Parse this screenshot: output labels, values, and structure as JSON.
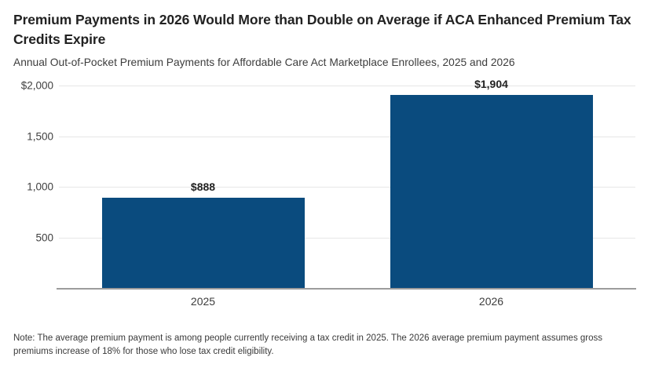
{
  "header": {
    "title": "Premium Payments in 2026 Would More than Double on Average if ACA Enhanced Premium Tax Credits Expire",
    "subtitle": "Annual Out-of-Pocket Premium Payments for Affordable Care Act Marketplace Enrollees, 2025 and 2026"
  },
  "chart_data": {
    "type": "bar",
    "title": "Premium Payments in 2026 Would More than Double on Average if ACA Enhanced Premium Tax Credits Expire",
    "subtitle": "Annual Out-of-Pocket Premium Payments for Affordable Care Act Marketplace Enrollees, 2025 and 2026",
    "categories": [
      "2025",
      "2026"
    ],
    "values": [
      888,
      1904
    ],
    "value_labels": [
      "$888",
      "$1,904"
    ],
    "xlabel": "",
    "ylabel": "",
    "ylim": [
      0,
      2000
    ],
    "yticks": [
      {
        "value": 500,
        "label": "500"
      },
      {
        "value": 1000,
        "label": "1,000"
      },
      {
        "value": 1500,
        "label": "1,500"
      },
      {
        "value": 2000,
        "label": "$2,000"
      }
    ],
    "grid": true,
    "legend": false,
    "value_labels_shown": true,
    "bar_color": "#0A4B7E"
  },
  "note": "Note: The average premium payment is among people currently receiving a tax credit in 2025. The 2026 average premium payment assumes gross premiums increase of 18% for those who lose tax credit eligibility."
}
